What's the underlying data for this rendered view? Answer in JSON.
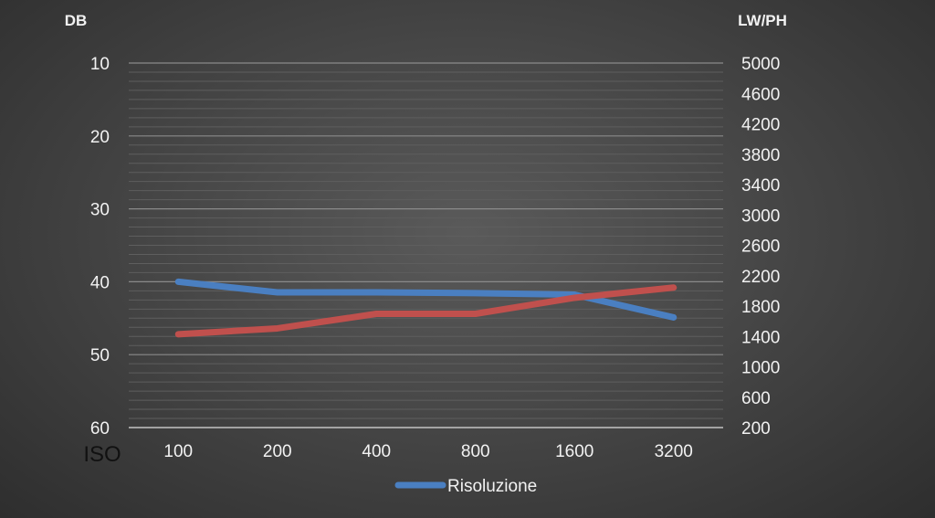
{
  "chart_data": {
    "type": "line",
    "categories": [
      "100",
      "200",
      "400",
      "800",
      "1600",
      "3200"
    ],
    "x_axis_extra_label": "ISO",
    "left_axis": {
      "title": "DB",
      "ticks": [
        "10",
        "20",
        "30",
        "40",
        "50",
        "60"
      ],
      "range": [
        10,
        60
      ],
      "inverted": true
    },
    "right_axis": {
      "title": "LW/PH",
      "ticks": [
        "5000",
        "4600",
        "4200",
        "3800",
        "3400",
        "3000",
        "2600",
        "2200",
        "1800",
        "1400",
        "1000",
        "600",
        "200"
      ],
      "range": [
        200,
        5000
      ]
    },
    "series": [
      {
        "name": "Risoluzione",
        "axis": "right",
        "color": "#4a7fc1",
        "values": [
          2120,
          1980,
          1980,
          1970,
          1950,
          1650
        ]
      },
      {
        "axis": "left",
        "color": "#c0504d",
        "values": [
          47.2,
          46.4,
          44.4,
          44.4,
          42.2,
          40.8
        ]
      }
    ],
    "legend": {
      "position": "bottom",
      "entries": [
        "Risoluzione"
      ]
    },
    "grid": true
  }
}
